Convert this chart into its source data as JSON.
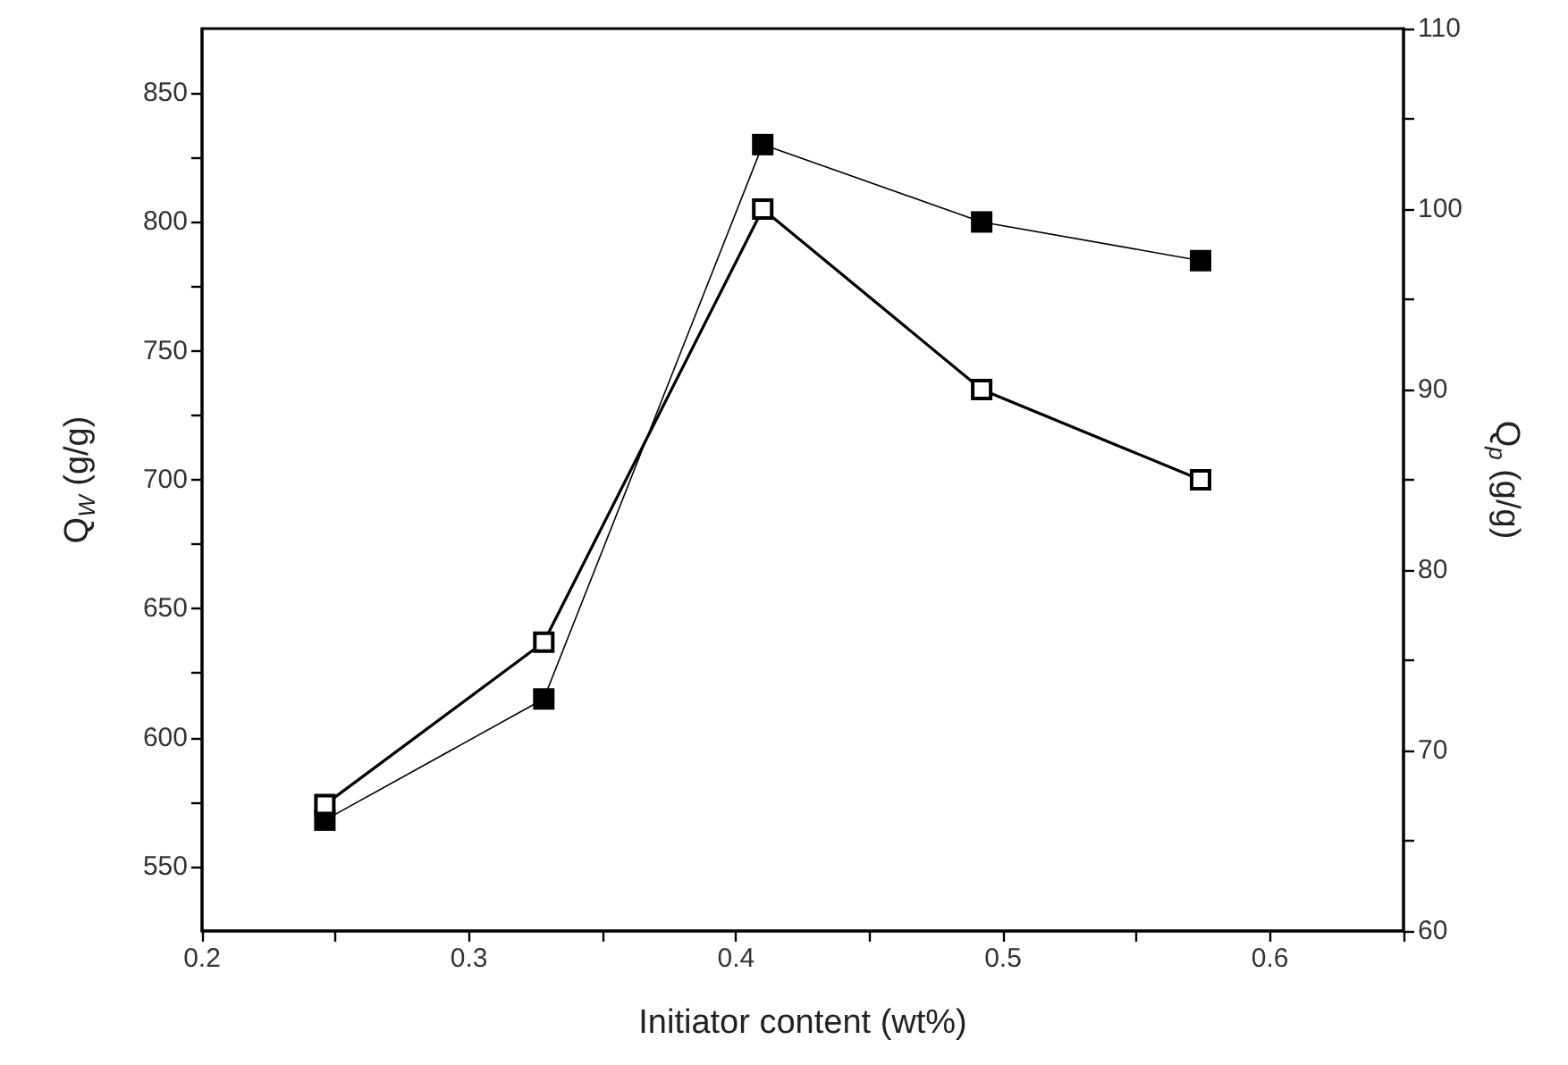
{
  "chart_data": {
    "type": "line",
    "xlabel": "Initiator content (wt%)",
    "ylabel": "Q$_{W}$ (g/g)",
    "y2label": "Q$_{p}$ (g/g)",
    "x": [
      0.246,
      0.328,
      0.41,
      0.492,
      0.574
    ],
    "series": [
      {
        "color": "#000000",
        "marker": "square",
        "values": [
          568,
          615,
          830,
          800,
          785
        ]
      },
      {
        "color": "#000000",
        "marker": "square",
        "axis": "y2",
        "values": [
          67,
          76,
          100,
          90,
          85
        ]
      }
    ],
    "xlim": [
      0.2,
      0.65
    ],
    "xticks": [
      0.2,
      {
        "value": 0.25,
        "label": null
      },
      0.3,
      {
        "value": 0.35,
        "label": null
      },
      0.4,
      {
        "value": 0.45,
        "label": null
      },
      0.5,
      {
        "value": 0.55,
        "label": null
      },
      0.6,
      {
        "value": 0.65,
        "label": null
      }
    ],
    "ylim": [
      525,
      875
    ],
    "yticks": [
      550,
      {
        "value": 575,
        "label": null
      },
      600,
      {
        "value": 625,
        "label": null
      },
      650,
      {
        "value": 675,
        "label": null
      },
      700,
      {
        "value": 725,
        "label": null
      },
      750,
      {
        "value": 775,
        "label": null
      },
      800,
      {
        "value": 825,
        "label": null
      },
      850
    ],
    "y2lim": [
      60,
      110
    ],
    "y2ticks": [
      60,
      {
        "value": 65,
        "label": null
      },
      70,
      {
        "value": 75,
        "label": null
      },
      80,
      {
        "value": 85,
        "label": null
      },
      90,
      {
        "value": 95,
        "label": null
      },
      100,
      {
        "value": 105,
        "label": null
      },
      110
    ],
    "line_style": "solid"
  }
}
